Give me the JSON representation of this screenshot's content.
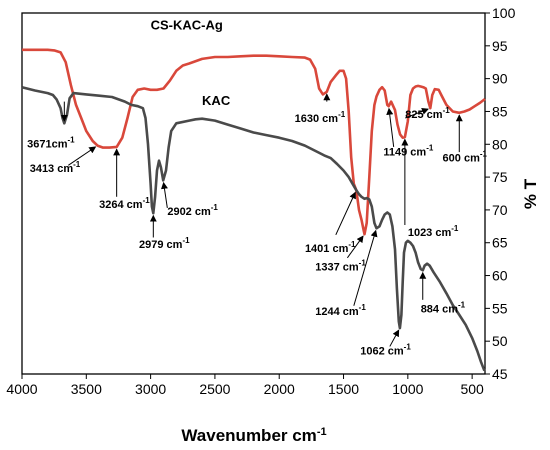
{
  "chart_data": {
    "type": "line",
    "xlabel": "Wavenumber cm",
    "xlabel_sup": "-1",
    "ylabel": "% T",
    "xlim": [
      4000,
      400
    ],
    "ylim": [
      45,
      100
    ],
    "x_ticks": [
      4000,
      3500,
      3000,
      2500,
      2000,
      1500,
      1000,
      500
    ],
    "y_ticks": [
      45,
      50,
      55,
      60,
      65,
      70,
      75,
      80,
      85,
      90,
      95,
      100
    ],
    "grid": false,
    "series": [
      {
        "name": "CS-KAC-Ag",
        "color": "#d9483b",
        "points": [
          [
            4000,
            94.4
          ],
          [
            3800,
            94.4
          ],
          [
            3750,
            94.3
          ],
          [
            3700,
            94
          ],
          [
            3660,
            92.5
          ],
          [
            3620,
            89
          ],
          [
            3580,
            86
          ],
          [
            3540,
            84
          ],
          [
            3500,
            82
          ],
          [
            3450,
            80.5
          ],
          [
            3413,
            79.8
          ],
          [
            3370,
            79.5
          ],
          [
            3320,
            79.5
          ],
          [
            3264,
            79.6
          ],
          [
            3220,
            81
          ],
          [
            3180,
            84
          ],
          [
            3140,
            87.2
          ],
          [
            3100,
            88.3
          ],
          [
            3050,
            88.5
          ],
          [
            3000,
            88.3
          ],
          [
            2950,
            88.3
          ],
          [
            2900,
            88.5
          ],
          [
            2850,
            89.7
          ],
          [
            2800,
            91.2
          ],
          [
            2750,
            92
          ],
          [
            2700,
            92.3
          ],
          [
            2600,
            93
          ],
          [
            2500,
            93.3
          ],
          [
            2400,
            93.3
          ],
          [
            2300,
            93.4
          ],
          [
            2200,
            93.5
          ],
          [
            2100,
            93.5
          ],
          [
            2000,
            93.4
          ],
          [
            1900,
            93.3
          ],
          [
            1800,
            93.2
          ],
          [
            1760,
            92.9
          ],
          [
            1720,
            91.5
          ],
          [
            1690,
            88.5
          ],
          [
            1660,
            87.6
          ],
          [
            1630,
            88
          ],
          [
            1600,
            89.5
          ],
          [
            1560,
            90.5
          ],
          [
            1530,
            91.2
          ],
          [
            1500,
            91.2
          ],
          [
            1480,
            90
          ],
          [
            1460,
            85
          ],
          [
            1440,
            78
          ],
          [
            1420,
            74
          ],
          [
            1401,
            73
          ],
          [
            1380,
            70
          ],
          [
            1360,
            68.5
          ],
          [
            1345,
            67
          ],
          [
            1337,
            66.3
          ],
          [
            1320,
            68
          ],
          [
            1300,
            75
          ],
          [
            1280,
            82
          ],
          [
            1260,
            86
          ],
          [
            1244,
            87.3
          ],
          [
            1220,
            88.3
          ],
          [
            1200,
            88.7
          ],
          [
            1180,
            88.2
          ],
          [
            1160,
            86
          ],
          [
            1149,
            85.8
          ],
          [
            1130,
            86.5
          ],
          [
            1100,
            85.2
          ],
          [
            1080,
            83
          ],
          [
            1060,
            81.5
          ],
          [
            1040,
            81
          ],
          [
            1023,
            81.1
          ],
          [
            1000,
            83.5
          ],
          [
            980,
            87.5
          ],
          [
            960,
            88.5
          ],
          [
            940,
            88.8
          ],
          [
            920,
            88.9
          ],
          [
            900,
            88.8
          ],
          [
            880,
            88.7
          ],
          [
            860,
            88.5
          ],
          [
            840,
            86.5
          ],
          [
            825,
            85.5
          ],
          [
            810,
            87.5
          ],
          [
            790,
            88.4
          ],
          [
            760,
            88.3
          ],
          [
            740,
            87.5
          ],
          [
            700,
            86
          ],
          [
            650,
            85
          ],
          [
            600,
            84.8
          ],
          [
            560,
            85
          ],
          [
            520,
            85.3
          ],
          [
            480,
            85.8
          ],
          [
            440,
            86.3
          ],
          [
            400,
            86.9
          ]
        ]
      },
      {
        "name": "KAC",
        "color": "#4a4a4a",
        "points": [
          [
            4000,
            88.7
          ],
          [
            3900,
            88.2
          ],
          [
            3800,
            87.8
          ],
          [
            3760,
            87.5
          ],
          [
            3730,
            86.8
          ],
          [
            3700,
            85.5
          ],
          [
            3685,
            84
          ],
          [
            3671,
            83.2
          ],
          [
            3650,
            84.5
          ],
          [
            3630,
            87
          ],
          [
            3600,
            87.8
          ],
          [
            3500,
            87.6
          ],
          [
            3400,
            87.4
          ],
          [
            3300,
            87.2
          ],
          [
            3200,
            86.5
          ],
          [
            3150,
            86
          ],
          [
            3100,
            85.8
          ],
          [
            3060,
            85.5
          ],
          [
            3040,
            84
          ],
          [
            3020,
            80
          ],
          [
            3000,
            74
          ],
          [
            2990,
            70.5
          ],
          [
            2979,
            69.5
          ],
          [
            2965,
            72
          ],
          [
            2950,
            76
          ],
          [
            2935,
            77.5
          ],
          [
            2920,
            76.5
          ],
          [
            2902,
            74.5
          ],
          [
            2880,
            76
          ],
          [
            2860,
            79.5
          ],
          [
            2840,
            82
          ],
          [
            2800,
            83.2
          ],
          [
            2700,
            83.6
          ],
          [
            2650,
            83.8
          ],
          [
            2600,
            83.9
          ],
          [
            2500,
            83.6
          ],
          [
            2400,
            83
          ],
          [
            2300,
            82.4
          ],
          [
            2200,
            81.8
          ],
          [
            2100,
            81.4
          ],
          [
            2000,
            81
          ],
          [
            1900,
            80.5
          ],
          [
            1800,
            79.8
          ],
          [
            1700,
            78.8
          ],
          [
            1650,
            78.3
          ],
          [
            1600,
            77.9
          ],
          [
            1550,
            77
          ],
          [
            1500,
            76
          ],
          [
            1460,
            75
          ],
          [
            1430,
            74
          ],
          [
            1401,
            73
          ],
          [
            1380,
            72.4
          ],
          [
            1360,
            72
          ],
          [
            1337,
            71.7
          ],
          [
            1320,
            71.8
          ],
          [
            1300,
            71.6
          ],
          [
            1280,
            70.5
          ],
          [
            1260,
            68
          ],
          [
            1244,
            67.2
          ],
          [
            1220,
            67.5
          ],
          [
            1200,
            68.5
          ],
          [
            1180,
            69.3
          ],
          [
            1160,
            69.6
          ],
          [
            1140,
            69.3
          ],
          [
            1120,
            67.5
          ],
          [
            1100,
            64
          ],
          [
            1085,
            58
          ],
          [
            1070,
            53
          ],
          [
            1062,
            52
          ],
          [
            1050,
            54
          ],
          [
            1040,
            59
          ],
          [
            1030,
            63.5
          ],
          [
            1015,
            65
          ],
          [
            1000,
            65.3
          ],
          [
            980,
            65
          ],
          [
            960,
            64.5
          ],
          [
            940,
            63.5
          ],
          [
            920,
            62
          ],
          [
            900,
            61
          ],
          [
            884,
            60.8
          ],
          [
            870,
            61.5
          ],
          [
            850,
            61.8
          ],
          [
            830,
            61.5
          ],
          [
            800,
            60.5
          ],
          [
            750,
            59
          ],
          [
            700,
            57.3
          ],
          [
            650,
            55.5
          ],
          [
            600,
            54
          ],
          [
            550,
            52.5
          ],
          [
            500,
            50.5
          ],
          [
            460,
            48.5
          ],
          [
            430,
            46.8
          ],
          [
            405,
            45.5
          ]
        ]
      }
    ],
    "series_labels": [
      {
        "text": "CS-KAC-Ag",
        "x": 3000,
        "y": 97.5
      },
      {
        "text": "KAC",
        "x": 2600,
        "y": 86
      }
    ],
    "annotations": [
      {
        "label": "3671cm",
        "sup": "-1",
        "peak": [
          3671,
          83.2
        ],
        "text_at": [
          3960,
          79.5
        ],
        "arrow_from": [
          3671,
          86.5
        ]
      },
      {
        "label": "3413 cm",
        "sup": "-1",
        "peak": [
          3413,
          79.8
        ],
        "text_at": [
          3940,
          75.8
        ],
        "arrow_from": [
          3640,
          76.8
        ]
      },
      {
        "label": "3264 cm",
        "sup": "-1",
        "peak": [
          3264,
          79.6
        ],
        "text_at": [
          3400,
          70.3
        ],
        "arrow_from": [
          3264,
          72
        ]
      },
      {
        "label": "2979 cm",
        "sup": "-1",
        "peak": [
          2979,
          69.5
        ],
        "text_at": [
          3090,
          64.2
        ],
        "arrow_from": [
          2979,
          65.8
        ]
      },
      {
        "label": "2902 cm",
        "sup": "-1",
        "peak": [
          2902,
          74.5
        ],
        "text_at": [
          2870,
          69.2
        ],
        "arrow_from": [
          2870,
          70.3
        ]
      },
      {
        "label": "1630 cm",
        "sup": "-1",
        "peak": [
          1630,
          88
        ],
        "text_at": [
          1880,
          83.4
        ],
        "arrow_from": [
          1630,
          86.5
        ]
      },
      {
        "label": "1401 cm",
        "sup": "-1",
        "peak": [
          1401,
          73
        ],
        "text_at": [
          1800,
          63.6
        ],
        "arrow_from": [
          1560,
          66.2
        ]
      },
      {
        "label": "1337 cm",
        "sup": "-1",
        "peak": [
          1337,
          66.3
        ],
        "text_at": [
          1720,
          60.8
        ],
        "arrow_from": [
          1470,
          62.7
        ]
      },
      {
        "label": "1244 cm",
        "sup": "-1",
        "peak": [
          1244,
          67.2
        ],
        "text_at": [
          1720,
          54
        ],
        "arrow_from": [
          1420,
          55.4
        ]
      },
      {
        "label": "1149 cm",
        "sup": "-1",
        "peak": [
          1149,
          85.8
        ],
        "text_at": [
          1190,
          78.3
        ],
        "arrow_from": [
          1110,
          79.6
        ]
      },
      {
        "label": "1023 cm",
        "sup": "-1",
        "peak": [
          1023,
          81.1
        ],
        "text_at": [
          1000,
          66
        ],
        "arrow_from": [
          1023,
          67.7
        ]
      },
      {
        "label": "825 cm",
        "sup": "-1",
        "peak": [
          825,
          85.5
        ],
        "text_at": [
          1020,
          84
        ],
        "arrow_from": [
          1020,
          84
        ]
      },
      {
        "label": "600 cm",
        "sup": "-1",
        "peak": [
          600,
          84.8
        ],
        "text_at": [
          730,
          77.4
        ],
        "arrow_from": [
          600,
          78.8
        ]
      },
      {
        "label": "884 cm",
        "sup": "-1",
        "peak": [
          884,
          60.8
        ],
        "text_at": [
          900,
          54.4
        ],
        "arrow_from": [
          884,
          56.3
        ]
      },
      {
        "label": "1062 cm",
        "sup": "-1",
        "peak": [
          1062,
          52
        ],
        "text_at": [
          1370,
          48
        ],
        "arrow_from": [
          1140,
          49.2
        ]
      }
    ]
  }
}
